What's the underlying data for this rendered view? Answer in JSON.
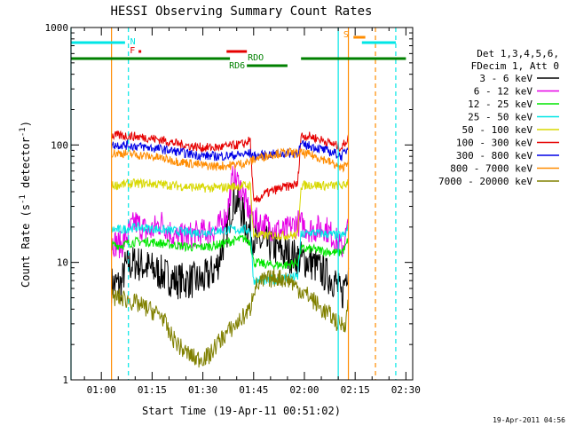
{
  "chart_data": {
    "type": "line",
    "title": "HESSI Observing Summary Count Rates",
    "xlabel": "Start Time (19-Apr-11 00:51:02)",
    "ylabel_parts": [
      "Count Rate (s",
      "-1",
      " detector",
      "-1",
      ")"
    ],
    "yscale": "log",
    "ylim": [
      1,
      1000
    ],
    "xlim": [
      "00:51:02",
      "02:32:00"
    ],
    "x_ticks": [
      "01:00",
      "01:15",
      "01:30",
      "01:45",
      "02:00",
      "02:15",
      "02:30"
    ],
    "y_ticks": [
      "1",
      "10",
      "100",
      "1000"
    ],
    "timestamp": "19-Apr-2011 04:56",
    "legend": {
      "header": [
        "Det 1,3,4,5,6,",
        "FDecim 1, Att 0"
      ],
      "items": [
        {
          "label": "3 - 6 keV",
          "color": "#000000"
        },
        {
          "label": "6 - 12 keV",
          "color": "#e600e6"
        },
        {
          "label": "12 - 25 keV",
          "color": "#00e600"
        },
        {
          "label": "25 - 50 keV",
          "color": "#00e6e6"
        },
        {
          "label": "50 - 100 keV",
          "color": "#d8d800"
        },
        {
          "label": "100 - 300 keV",
          "color": "#e60000"
        },
        {
          "label": "300 - 800 keV",
          "color": "#0000e6"
        },
        {
          "label": "800 - 7000 keV",
          "color": "#ff8c00"
        },
        {
          "label": "7000 - 20000 keV",
          "color": "#808000"
        }
      ]
    },
    "flags": [
      {
        "label": "N",
        "color": "#00e6e6",
        "segments": [
          [
            "00:51:02",
            "01:07:00"
          ],
          [
            "02:17:00",
            "02:27:00"
          ]
        ]
      },
      {
        "label": "F",
        "color": "#e60000",
        "segments": [
          [
            "01:11:00",
            "01:11:30"
          ]
        ]
      },
      {
        "label": "S",
        "color": "#ff8c00",
        "segments": [
          [
            "02:14:30",
            "02:18:00"
          ]
        ]
      },
      {
        "label": "RDO",
        "color": "#e60000",
        "segments": [
          [
            "01:37:00",
            "01:43:00"
          ]
        ]
      },
      {
        "label": "RD6",
        "color": "#008000",
        "segments": [
          [
            "01:43:00",
            "01:55:00"
          ]
        ]
      },
      {
        "label": "",
        "color": "#008000",
        "segments": [
          [
            "00:51:02",
            "01:38:00"
          ],
          [
            "01:59:00",
            "02:30:00"
          ]
        ]
      }
    ],
    "vlines": [
      {
        "x": "00:51:02",
        "color": "#00e6e6",
        "style": "solid"
      },
      {
        "x": "01:03:00",
        "color": "#ff8c00",
        "style": "solid"
      },
      {
        "x": "01:08:00",
        "color": "#00e6e6",
        "style": "dashed"
      },
      {
        "x": "02:10:00",
        "color": "#00e6e6",
        "style": "solid"
      },
      {
        "x": "02:13:00",
        "color": "#ff8c00",
        "style": "solid"
      },
      {
        "x": "02:21:00",
        "color": "#ff8c00",
        "style": "dashed"
      },
      {
        "x": "02:27:00",
        "color": "#00e6e6",
        "style": "dashed"
      }
    ],
    "series": [
      {
        "name": "3 - 6 keV",
        "color": "#000000",
        "points": [
          [
            "01:03",
            6.5
          ],
          [
            "01:06",
            6.5
          ],
          [
            "01:07",
            9
          ],
          [
            "01:10",
            10
          ],
          [
            "01:14",
            9
          ],
          [
            "01:18",
            8
          ],
          [
            "01:22",
            7
          ],
          [
            "01:26",
            7
          ],
          [
            "01:30",
            7
          ],
          [
            "01:34",
            9
          ],
          [
            "01:37",
            18
          ],
          [
            "01:39",
            35
          ],
          [
            "01:41",
            30
          ],
          [
            "01:43",
            20
          ],
          [
            "01:46",
            15
          ],
          [
            "01:50",
            14
          ],
          [
            "01:54",
            12
          ],
          [
            "01:58",
            11
          ],
          [
            "02:02",
            10
          ],
          [
            "02:06",
            8
          ],
          [
            "02:09",
            7
          ],
          [
            "02:11",
            5
          ],
          [
            "02:13",
            10
          ]
        ]
      },
      {
        "name": "6 - 12 keV",
        "color": "#e600e6",
        "points": [
          [
            "01:03",
            15
          ],
          [
            "01:06",
            14
          ],
          [
            "01:08",
            18
          ],
          [
            "01:10",
            22
          ],
          [
            "01:14",
            18
          ],
          [
            "01:18",
            22
          ],
          [
            "01:22",
            16
          ],
          [
            "01:26",
            17
          ],
          [
            "01:30",
            18
          ],
          [
            "01:34",
            19
          ],
          [
            "01:37",
            25
          ],
          [
            "01:39",
            55
          ],
          [
            "01:41",
            45
          ],
          [
            "01:43",
            30
          ],
          [
            "01:46",
            22
          ],
          [
            "01:50",
            20
          ],
          [
            "01:54",
            18
          ],
          [
            "01:58",
            22
          ],
          [
            "02:02",
            19
          ],
          [
            "02:06",
            20
          ],
          [
            "02:09",
            16
          ],
          [
            "02:11",
            13
          ],
          [
            "02:13",
            20
          ]
        ]
      },
      {
        "name": "12 - 25 keV",
        "color": "#00e600",
        "points": [
          [
            "01:03",
            14
          ],
          [
            "01:06",
            14
          ],
          [
            "01:10",
            15
          ],
          [
            "01:14",
            15
          ],
          [
            "01:18",
            14.5
          ],
          [
            "01:22",
            14
          ],
          [
            "01:26",
            13.5
          ],
          [
            "01:30",
            13.5
          ],
          [
            "01:34",
            14
          ],
          [
            "01:38",
            15
          ],
          [
            "01:42",
            16
          ],
          [
            "01:44",
            15
          ],
          [
            "01:45",
            10
          ],
          [
            "01:50",
            9.5
          ],
          [
            "01:55",
            9.5
          ],
          [
            "01:58",
            10
          ],
          [
            "01:59",
            13
          ],
          [
            "02:02",
            13
          ],
          [
            "02:06",
            12.5
          ],
          [
            "02:10",
            12
          ],
          [
            "02:12",
            13
          ],
          [
            "02:13",
            16
          ]
        ]
      },
      {
        "name": "25 - 50 keV",
        "color": "#00e6e6",
        "points": [
          [
            "01:03",
            19
          ],
          [
            "01:06",
            19
          ],
          [
            "01:10",
            20
          ],
          [
            "01:14",
            19.5
          ],
          [
            "01:18",
            19
          ],
          [
            "01:22",
            18.5
          ],
          [
            "01:26",
            18
          ],
          [
            "01:30",
            18
          ],
          [
            "01:34",
            18.5
          ],
          [
            "01:38",
            19
          ],
          [
            "01:42",
            19
          ],
          [
            "01:44",
            19
          ],
          [
            "01:45",
            7
          ],
          [
            "01:50",
            7
          ],
          [
            "01:55",
            7.5
          ],
          [
            "01:58",
            7.5
          ],
          [
            "01:59",
            17
          ],
          [
            "02:02",
            18
          ],
          [
            "02:06",
            17.5
          ],
          [
            "02:10",
            17
          ],
          [
            "02:12",
            17
          ],
          [
            "02:13",
            20
          ]
        ]
      },
      {
        "name": "50 - 100 keV",
        "color": "#d8d800",
        "points": [
          [
            "01:03",
            45
          ],
          [
            "01:06",
            46
          ],
          [
            "01:10",
            47
          ],
          [
            "01:14",
            47
          ],
          [
            "01:18",
            46
          ],
          [
            "01:22",
            45
          ],
          [
            "01:26",
            44
          ],
          [
            "01:30",
            43
          ],
          [
            "01:34",
            43
          ],
          [
            "01:38",
            44
          ],
          [
            "01:42",
            45
          ],
          [
            "01:44",
            45
          ],
          [
            "01:45",
            17
          ],
          [
            "01:50",
            17
          ],
          [
            "01:55",
            17
          ],
          [
            "01:58",
            17
          ],
          [
            "01:59",
            45
          ],
          [
            "02:02",
            46
          ],
          [
            "02:06",
            45
          ],
          [
            "02:10",
            45
          ],
          [
            "02:12",
            45
          ],
          [
            "02:13",
            50
          ]
        ]
      },
      {
        "name": "100 - 300 keV",
        "color": "#e60000",
        "points": [
          [
            "01:03",
            120
          ],
          [
            "01:06",
            120
          ],
          [
            "01:10",
            118
          ],
          [
            "01:14",
            115
          ],
          [
            "01:18",
            110
          ],
          [
            "01:22",
            103
          ],
          [
            "01:26",
            98
          ],
          [
            "01:30",
            95
          ],
          [
            "01:34",
            95
          ],
          [
            "01:38",
            98
          ],
          [
            "01:42",
            102
          ],
          [
            "01:44",
            110
          ],
          [
            "01:45",
            32
          ],
          [
            "01:48",
            38
          ],
          [
            "01:52",
            42
          ],
          [
            "01:56",
            45
          ],
          [
            "01:58",
            46
          ],
          [
            "01:59",
            120
          ],
          [
            "02:02",
            118
          ],
          [
            "02:06",
            108
          ],
          [
            "02:09",
            100
          ],
          [
            "02:11",
            95
          ],
          [
            "02:13",
            115
          ]
        ]
      },
      {
        "name": "300 - 800 keV",
        "color": "#0000e6",
        "points": [
          [
            "01:03",
            100
          ],
          [
            "01:06",
            100
          ],
          [
            "01:10",
            98
          ],
          [
            "01:14",
            95
          ],
          [
            "01:18",
            92
          ],
          [
            "01:22",
            88
          ],
          [
            "01:26",
            84
          ],
          [
            "01:30",
            81
          ],
          [
            "01:34",
            80
          ],
          [
            "01:38",
            81
          ],
          [
            "01:42",
            83
          ],
          [
            "01:44",
            85
          ],
          [
            "01:45",
            80
          ],
          [
            "01:48",
            82
          ],
          [
            "01:52",
            84
          ],
          [
            "01:56",
            85
          ],
          [
            "01:58",
            86
          ],
          [
            "01:59",
            100
          ],
          [
            "02:02",
            98
          ],
          [
            "02:06",
            90
          ],
          [
            "02:09",
            85
          ],
          [
            "02:11",
            80
          ],
          [
            "02:13",
            95
          ]
        ]
      },
      {
        "name": "800 - 7000 keV",
        "color": "#ff8c00",
        "points": [
          [
            "01:03",
            85
          ],
          [
            "01:06",
            85
          ],
          [
            "01:10",
            83
          ],
          [
            "01:14",
            80
          ],
          [
            "01:18",
            77
          ],
          [
            "01:22",
            73
          ],
          [
            "01:26",
            70
          ],
          [
            "01:30",
            67
          ],
          [
            "01:34",
            66
          ],
          [
            "01:38",
            67
          ],
          [
            "01:42",
            70
          ],
          [
            "01:44",
            72
          ],
          [
            "01:45",
            75
          ],
          [
            "01:48",
            80
          ],
          [
            "01:52",
            85
          ],
          [
            "01:56",
            86
          ],
          [
            "01:58",
            84
          ],
          [
            "01:59",
            85
          ],
          [
            "02:02",
            82
          ],
          [
            "02:06",
            75
          ],
          [
            "02:09",
            68
          ],
          [
            "02:11",
            62
          ],
          [
            "02:13",
            75
          ]
        ]
      },
      {
        "name": "7000 - 20000 keV",
        "color": "#808000",
        "points": [
          [
            "01:03",
            5
          ],
          [
            "01:06",
            5
          ],
          [
            "01:10",
            4.5
          ],
          [
            "01:14",
            4
          ],
          [
            "01:18",
            3.5
          ],
          [
            "01:20",
            2.5
          ],
          [
            "01:24",
            1.8
          ],
          [
            "01:28",
            1.5
          ],
          [
            "01:32",
            1.6
          ],
          [
            "01:34",
            2
          ],
          [
            "01:37",
            2.5
          ],
          [
            "01:40",
            3
          ],
          [
            "01:44",
            4
          ],
          [
            "01:45",
            6
          ],
          [
            "01:48",
            7
          ],
          [
            "01:52",
            7.5
          ],
          [
            "01:56",
            7
          ],
          [
            "01:58",
            6
          ],
          [
            "02:02",
            5
          ],
          [
            "02:05",
            4
          ],
          [
            "02:08",
            3.5
          ],
          [
            "02:10",
            3
          ],
          [
            "02:12",
            3
          ],
          [
            "02:13",
            4.5
          ]
        ]
      }
    ]
  }
}
